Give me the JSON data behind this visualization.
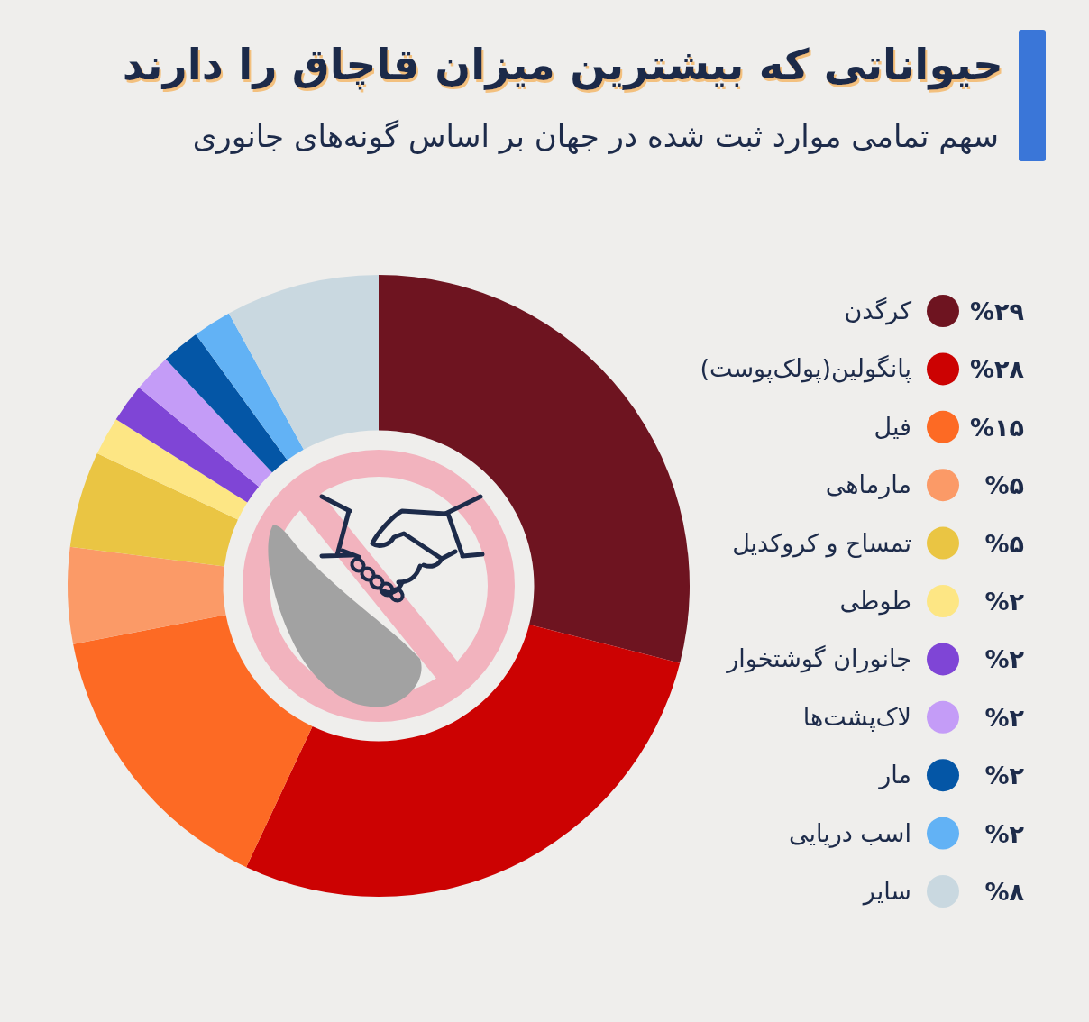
{
  "chart_data": {
    "type": "donut",
    "title": "حیواناتی که بیشترین میزان قاچاق را دارند",
    "subtitle": "سهم تمامی موارد ثبت شده در جهان بر اساس گونه‌های جانوری",
    "categories": [
      "کرگدن",
      "پانگولین(پولک‌پوست)",
      "فیل",
      "مارماهی",
      "تمساح و کروکدیل",
      "طوطی",
      "جانوران گوشتخوار",
      "لاک‌پشت‌ها",
      "مار",
      "اسب دریایی",
      "سایر"
    ],
    "values": [
      29,
      28,
      15,
      5,
      5,
      2,
      2,
      2,
      2,
      2,
      8
    ],
    "colors": [
      "#6e1420",
      "#cc0202",
      "#fd6a24",
      "#fb9a67",
      "#eac543",
      "#fde684",
      "#7f45d6",
      "#c49cf7",
      "#0456a6",
      "#62b2f5",
      "#c9d8e0"
    ],
    "value_labels": [
      "%۲۹",
      "%۲۸",
      "%۱۵",
      "%۵",
      "%۵",
      "%۲",
      "%۲",
      "%۲",
      "%۲",
      "%۲",
      "%۸"
    ],
    "legend": "right"
  }
}
